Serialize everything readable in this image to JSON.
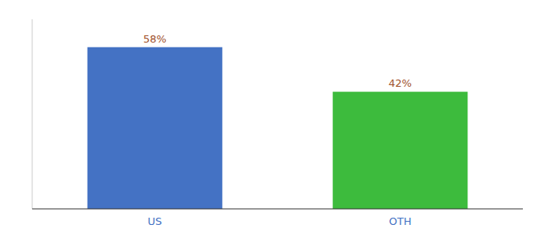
{
  "chart_data": {
    "type": "bar",
    "categories": [
      "US",
      "OTH"
    ],
    "values": [
      58,
      42
    ],
    "value_labels": [
      "58%",
      "42%"
    ],
    "colors": [
      "#4472c4",
      "#3dbb3d"
    ],
    "ylim": [
      0,
      68
    ],
    "data_labels": true,
    "tick_labels": "x"
  }
}
